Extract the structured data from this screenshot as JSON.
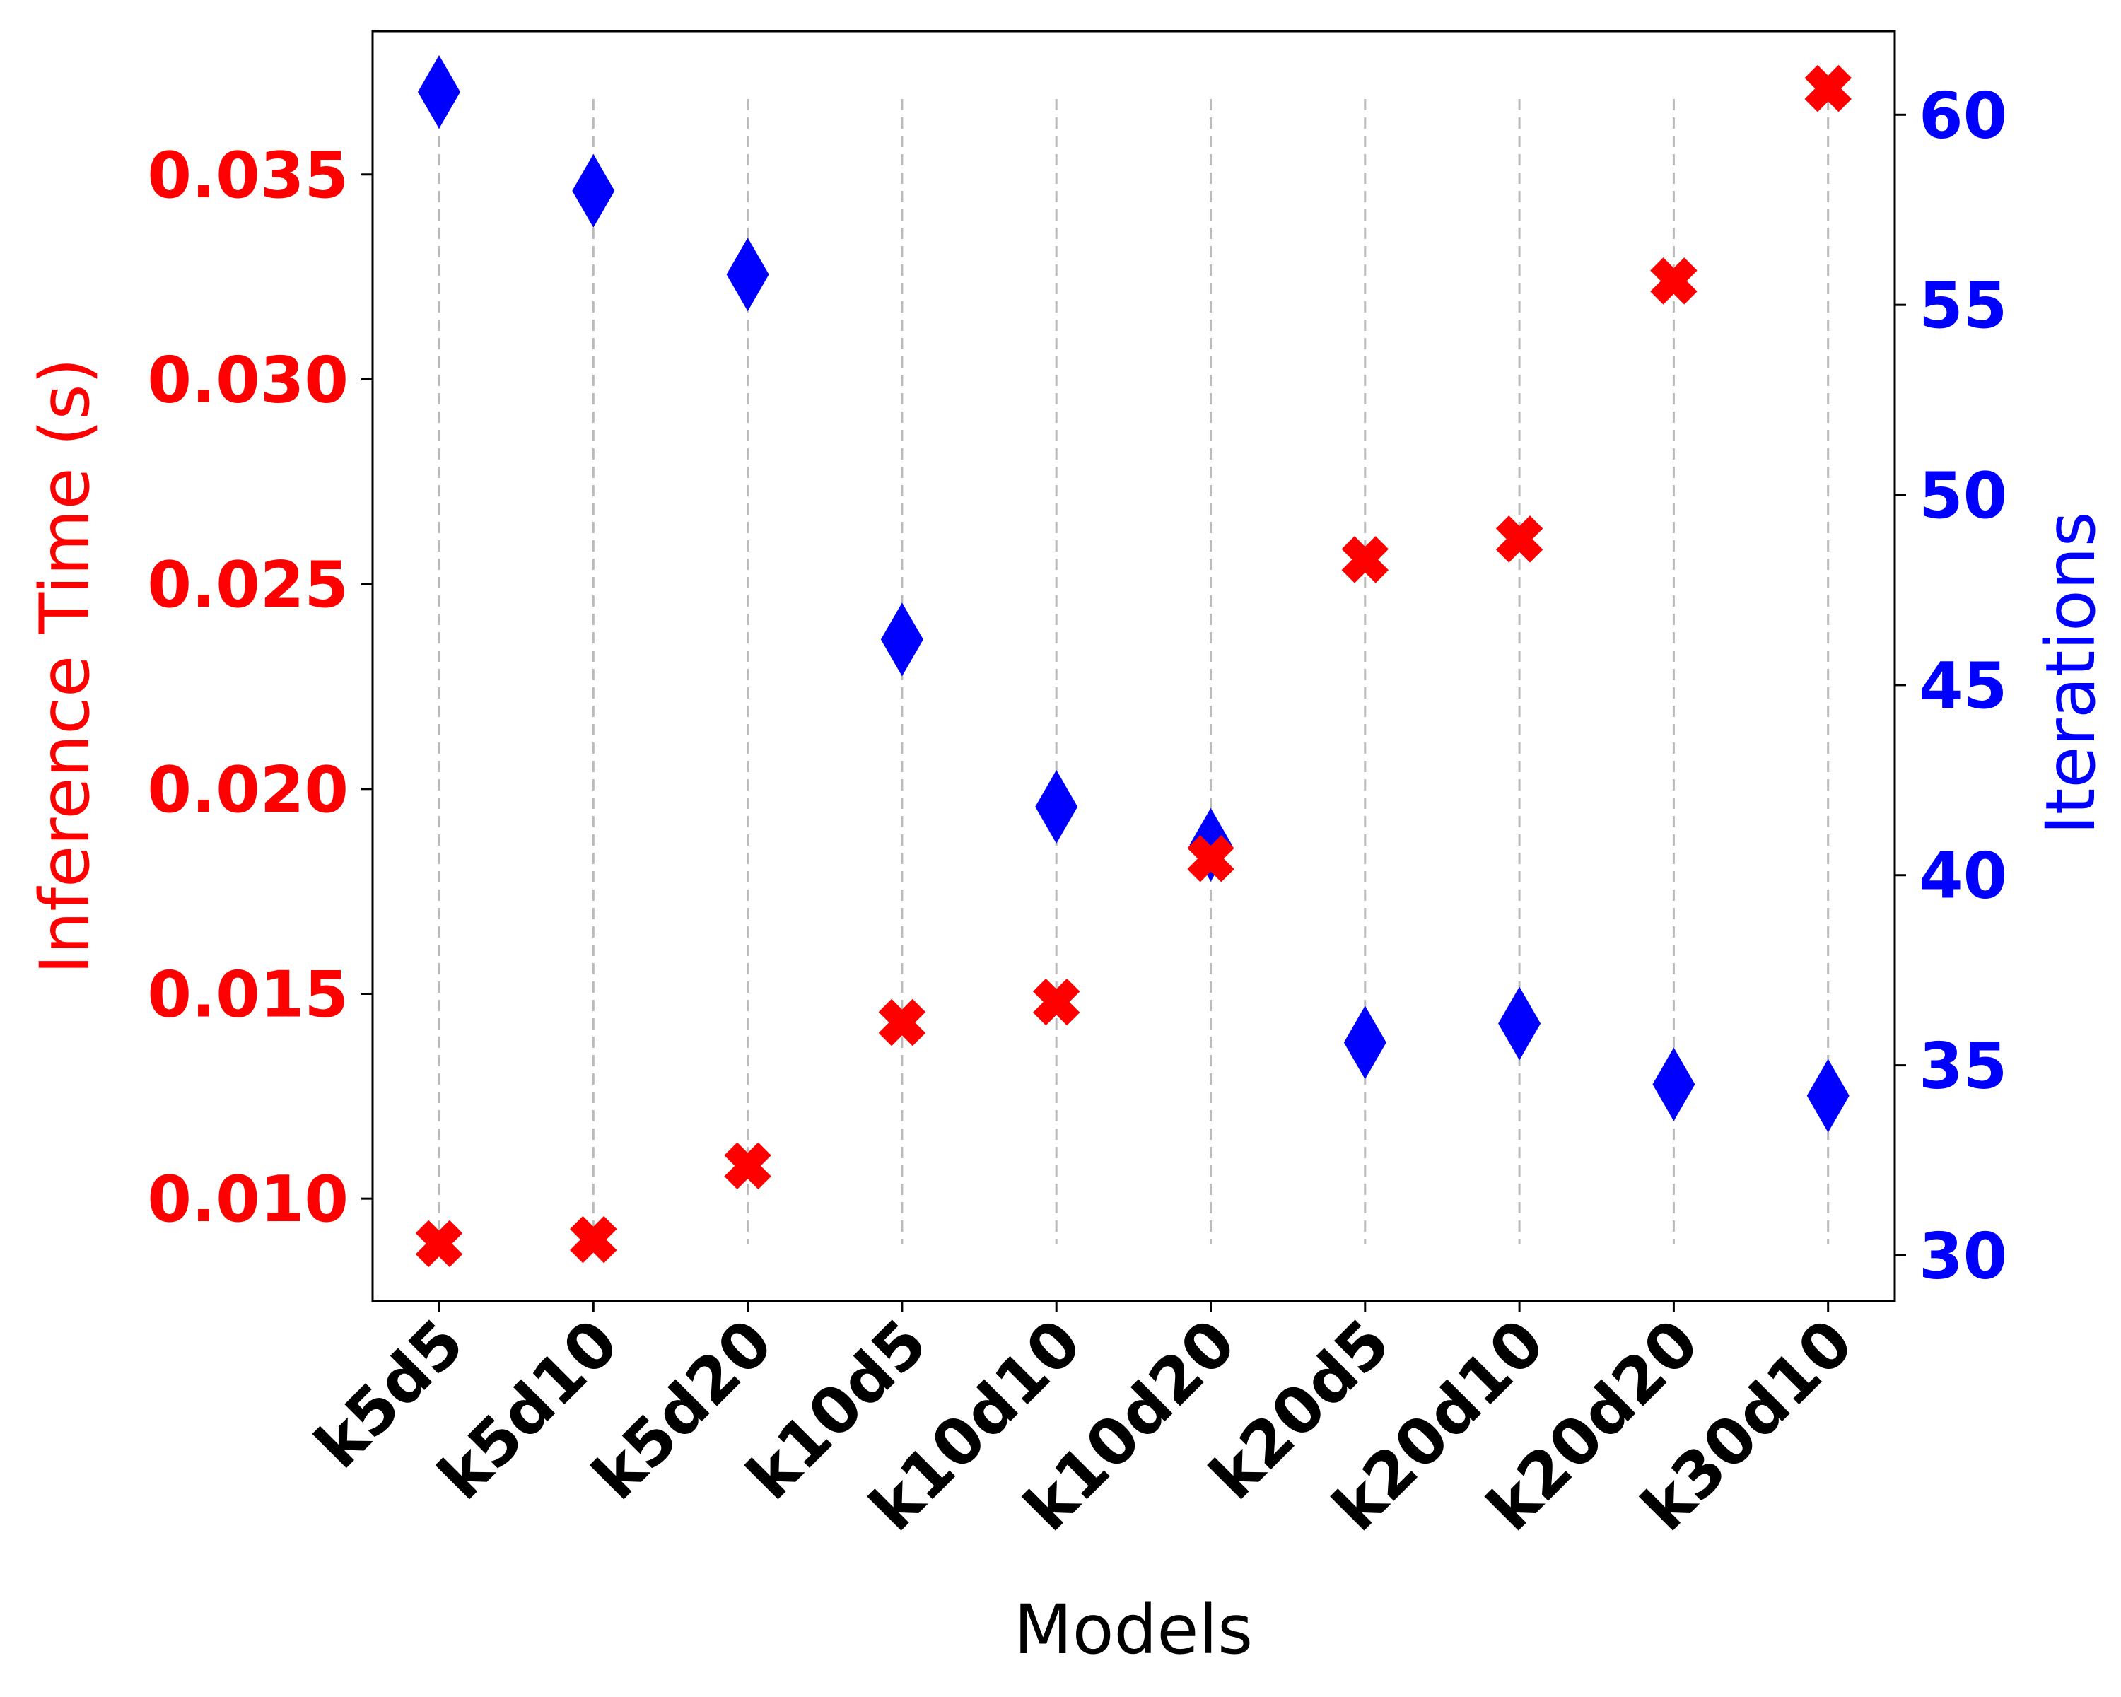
{
  "chart_data": {
    "type": "scatter",
    "title": "",
    "xlabel": "Models",
    "ylabel_left": "Inference Time (s)",
    "ylabel_right": "Iterations",
    "categories": [
      "k5d5",
      "k5d10",
      "k5d20",
      "k10d5",
      "k10d10",
      "k10d20",
      "k20d5",
      "k20d10",
      "k20d20",
      "k30d10"
    ],
    "left_axis": {
      "ylim": [
        0.0075,
        0.0385
      ],
      "ticks": [
        0.01,
        0.015,
        0.02,
        0.025,
        0.03,
        0.035
      ],
      "tick_labels": [
        "0.010",
        "0.015",
        "0.020",
        "0.025",
        "0.030",
        "0.035"
      ],
      "color": "#ff0000"
    },
    "right_axis": {
      "ylim": [
        28.8,
        62.2
      ],
      "ticks": [
        30,
        35,
        40,
        45,
        50,
        55,
        60
      ],
      "tick_labels": [
        "30",
        "35",
        "40",
        "45",
        "50",
        "55",
        "60"
      ],
      "color": "#0000ff"
    },
    "series": [
      {
        "axis": "left",
        "marker": "x-filled",
        "color": "#ff0000",
        "values": [
          0.0089,
          0.009,
          0.0108,
          0.0143,
          0.0148,
          0.0183,
          0.0256,
          0.0261,
          0.0324,
          0.0371
        ]
      },
      {
        "axis": "right",
        "marker": "thin-diamond",
        "color": "#0000ff",
        "values": [
          60.6,
          58.0,
          55.8,
          46.2,
          41.8,
          40.8,
          35.6,
          36.1,
          34.5,
          34.2
        ]
      }
    ],
    "grid": "x-dashed"
  }
}
